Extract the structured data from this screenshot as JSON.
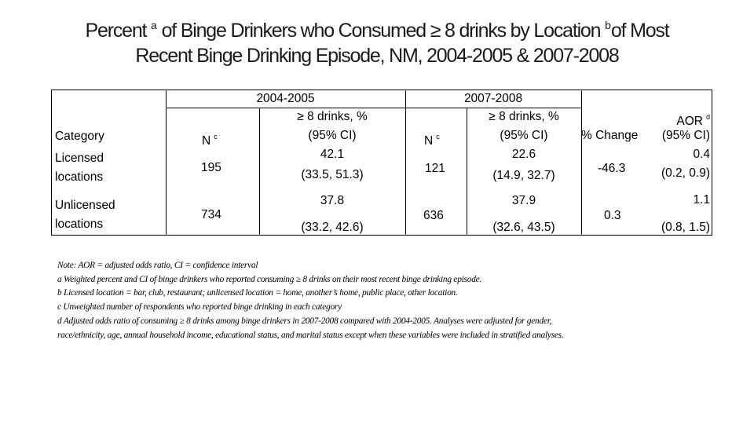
{
  "title": {
    "line1_a": "Percent",
    "line1_sup_a": "a",
    "line1_b": "of Binge Drinkers who Consumed ≥ 8 drinks by Location",
    "line1_sup_b": "b",
    "line1_c": "of Most",
    "line2": "Recent Binge Drinking Episode, NM, 2004-2005 & 2007-2008"
  },
  "table": {
    "group_2004": "2004-2005",
    "group_2007": "2007-2008",
    "col_category": "Category",
    "col_n": "N",
    "col_n_sup": "c",
    "col_pct_line1": "≥ 8 drinks, %",
    "col_pct_line2": "(95% CI)",
    "col_change": "% Change",
    "col_aor_line1": "AOR",
    "col_aor_sup": "d",
    "col_aor_line2": "(95% CI)",
    "rows": [
      {
        "category_line1": "Licensed",
        "category_line2": "locations",
        "n_2004": "195",
        "pct_2004": "42.1",
        "ci_2004": "(33.5, 51.3)",
        "n_2007": "121",
        "pct_2007": "22.6",
        "ci_2007": "(14.9, 32.7)",
        "change": "-46.3",
        "aor": "0.4",
        "aor_ci": "(0.2, 0.9)"
      },
      {
        "category_line1": "Unlicensed",
        "category_line2": "locations",
        "n_2004": "734",
        "pct_2004": "37.8",
        "ci_2004": "(33.2, 42.6)",
        "n_2007": "636",
        "pct_2007": "37.9",
        "ci_2007": "(32.6, 43.5)",
        "change": "0.3",
        "aor": "1.1",
        "aor_ci": "(0.8, 1.5)"
      }
    ]
  },
  "notes": [
    "Note: AOR = adjusted odds ratio, CI = confidence interval",
    "a Weighted percent and CI of binge drinkers who reported consuming ≥ 8 drinks on their most recent binge drinking episode.",
    "b Licensed location = bar, club, restaurant; unlicensed location = home, another’s home, public place, other location.",
    "c Unweighted number of respondents who reported binge drinking in each category",
    "d Adjusted odds ratio of consuming ≥ 8 drinks among binge drinkers in 2007-2008 compared with 2004-2005. Analyses were adjusted for gender,",
    "race/ethnicity, age, annual household income, educational status, and marital status except when these variables were included in stratified analyses."
  ]
}
